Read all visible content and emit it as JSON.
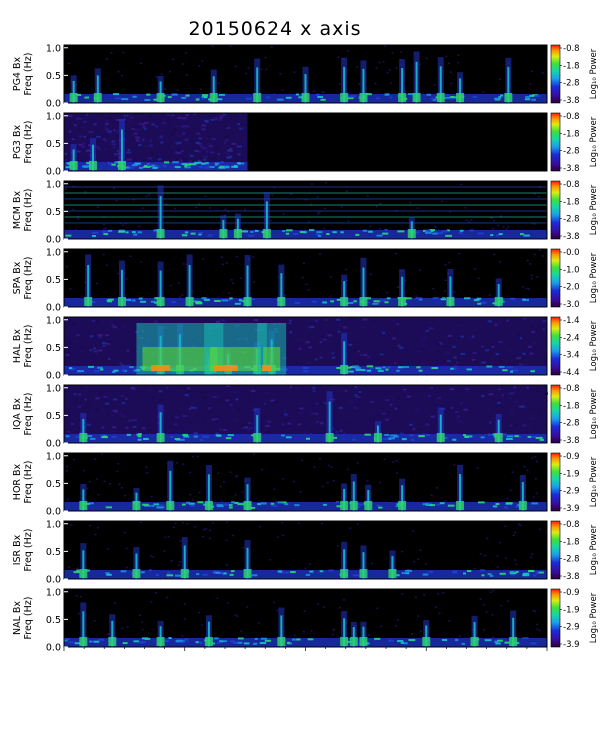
{
  "chart_data": {
    "type": "heatmap",
    "title": "20150624  x axis",
    "colorbar_label": "Log₁₀ Power",
    "side_note": "",
    "yticks": [
      "0.0",
      "0.5",
      "1.0"
    ],
    "ylim": [
      0,
      1.05
    ],
    "panels": [
      {
        "name": "PG4",
        "ylabel_station": "PG4 Bx",
        "ylabel_units": "Freq (Hz)",
        "cb_ticks": [
          "-0.8",
          "-1.8",
          "-2.8",
          "-3.8"
        ],
        "vmin": -3.8,
        "vmax": -0.8,
        "data_end_fraction": 1.0,
        "background": "dark",
        "activity": [
          0.02,
          0.07,
          0.2,
          0.31,
          0.4,
          0.5,
          0.58,
          0.62,
          0.7,
          0.73,
          0.78,
          0.82,
          0.92
        ]
      },
      {
        "name": "PG3",
        "ylabel_station": "PG3 Bx",
        "ylabel_units": "Freq (Hz)",
        "cb_ticks": [
          "-0.8",
          "-1.8",
          "-2.8",
          "-3.8"
        ],
        "vmin": -3.8,
        "vmax": -0.8,
        "data_end_fraction": 0.38,
        "background": "noisy",
        "activity": [
          0.02,
          0.06,
          0.12
        ]
      },
      {
        "name": "MCM",
        "ylabel_station": "MCM Bx",
        "ylabel_units": "Freq (Hz)",
        "cb_ticks": [
          "-0.8",
          "-1.8",
          "-2.8",
          "-3.8"
        ],
        "vmin": -3.8,
        "vmax": -0.8,
        "data_end_fraction": 1.0,
        "background": "dark-lines",
        "activity": [
          0.2,
          0.33,
          0.36,
          0.42,
          0.72
        ]
      },
      {
        "name": "SPA",
        "ylabel_station": "SPA Bx",
        "ylabel_units": "Freq (Hz)",
        "cb_ticks": [
          "-0.0",
          "-1.0",
          "-2.0",
          "-3.0"
        ],
        "vmin": -3.0,
        "vmax": 0.0,
        "data_end_fraction": 1.0,
        "background": "dark",
        "activity": [
          0.05,
          0.12,
          0.2,
          0.26,
          0.38,
          0.45,
          0.58,
          0.62,
          0.7,
          0.8,
          0.9
        ]
      },
      {
        "name": "HAL",
        "ylabel_station": "HAL Bx",
        "ylabel_units": "Freq (Hz)",
        "cb_ticks": [
          "-1.4",
          "-2.4",
          "-3.4",
          "-4.4"
        ],
        "vmin": -4.4,
        "vmax": -1.4,
        "data_end_fraction": 1.0,
        "background": "noisy",
        "activity": [
          0.2,
          0.24,
          0.3,
          0.34,
          0.4,
          0.43,
          0.58
        ]
      },
      {
        "name": "IQA",
        "ylabel_station": "IQA Bx",
        "ylabel_units": "Freq (Hz)",
        "cb_ticks": [
          "-0.8",
          "-1.8",
          "-2.8",
          "-3.8"
        ],
        "vmin": -3.8,
        "vmax": -0.8,
        "data_end_fraction": 1.0,
        "background": "noisy",
        "activity": [
          0.04,
          0.2,
          0.4,
          0.55,
          0.65,
          0.78,
          0.9
        ]
      },
      {
        "name": "HOR",
        "ylabel_station": "HOR Bx",
        "ylabel_units": "Freq (Hz)",
        "cb_ticks": [
          "-0.9",
          "-1.9",
          "-2.9",
          "-3.9"
        ],
        "vmin": -3.9,
        "vmax": -0.9,
        "data_end_fraction": 1.0,
        "background": "dark",
        "activity": [
          0.04,
          0.15,
          0.22,
          0.3,
          0.38,
          0.58,
          0.6,
          0.63,
          0.7,
          0.82,
          0.95
        ]
      },
      {
        "name": "ISR",
        "ylabel_station": "ISR Bx",
        "ylabel_units": "Freq (Hz)",
        "cb_ticks": [
          "-0.8",
          "-1.8",
          "-2.8",
          "-3.8"
        ],
        "vmin": -3.8,
        "vmax": -0.8,
        "data_end_fraction": 1.0,
        "background": "dark",
        "activity": [
          0.04,
          0.15,
          0.25,
          0.38,
          0.58,
          0.62,
          0.68
        ]
      },
      {
        "name": "NAL",
        "ylabel_station": "NAL Bx",
        "ylabel_units": "Freq (Hz)",
        "cb_ticks": [
          "-0.9",
          "-1.9",
          "-2.9",
          "-3.9"
        ],
        "vmin": -3.9,
        "vmax": -0.9,
        "data_end_fraction": 1.0,
        "background": "dark",
        "activity": [
          0.04,
          0.1,
          0.2,
          0.3,
          0.45,
          0.58,
          0.6,
          0.62,
          0.75,
          0.85,
          0.93
        ]
      }
    ]
  }
}
